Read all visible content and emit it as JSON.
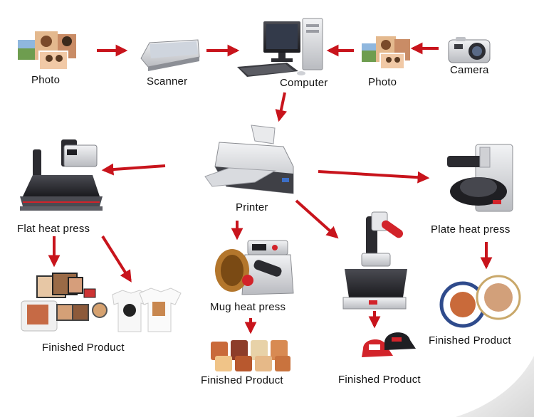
{
  "labels": {
    "photo_left": "Photo",
    "scanner": "Scanner",
    "computer": "Computer",
    "photo_right": "Photo",
    "camera": "Camera",
    "printer": "Printer",
    "flat_press": "Flat heat press",
    "mug_press": "Mug heat press",
    "plate_press": "Plate heat press",
    "finished_flat": "Finished Product",
    "finished_mug": "Finished Product",
    "finished_cap": "Finished Product",
    "finished_plate": "Finished Product"
  },
  "colors": {
    "arrow": "#c8141c",
    "machine_dark": "#2a2a2e",
    "machine_light": "#d9dadc",
    "accent_red": "#d2232a"
  },
  "icons": [
    "photo-collage-icon",
    "scanner-icon",
    "computer-icon",
    "camera-icon",
    "printer-icon",
    "flat-heat-press-icon",
    "mug-heat-press-icon",
    "cap-heat-press-icon",
    "plate-heat-press-icon",
    "finished-tshirts-icon",
    "finished-mugs-icon",
    "finished-caps-icon",
    "finished-plates-icon"
  ]
}
